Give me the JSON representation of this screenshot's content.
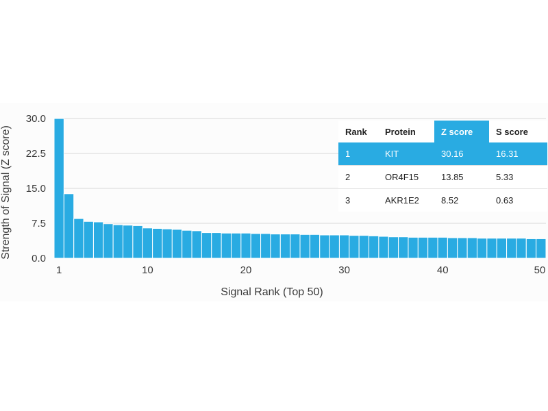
{
  "chart_data": {
    "type": "bar",
    "xlabel": "Signal Rank (Top 50)",
    "ylabel": "Strength of Signal (Z score)",
    "ylim": [
      0,
      30
    ],
    "xlim": [
      1,
      50
    ],
    "y_ticks": [
      "0.0",
      "7.5",
      "15.0",
      "22.5",
      "30.0"
    ],
    "x_ticks": [
      "1",
      "10",
      "20",
      "30",
      "40",
      "50"
    ],
    "grid": true,
    "x": [
      1,
      2,
      3,
      4,
      5,
      6,
      7,
      8,
      9,
      10,
      11,
      12,
      13,
      14,
      15,
      16,
      17,
      18,
      19,
      20,
      21,
      22,
      23,
      24,
      25,
      26,
      27,
      28,
      29,
      30,
      31,
      32,
      33,
      34,
      35,
      36,
      37,
      38,
      39,
      40,
      41,
      42,
      43,
      44,
      45,
      46,
      47,
      48,
      49,
      50
    ],
    "values": [
      30.16,
      13.85,
      8.52,
      7.9,
      7.8,
      7.4,
      7.2,
      7.1,
      7.0,
      6.5,
      6.4,
      6.3,
      6.2,
      6.0,
      5.9,
      5.5,
      5.5,
      5.4,
      5.4,
      5.4,
      5.3,
      5.3,
      5.2,
      5.2,
      5.2,
      5.1,
      5.1,
      5.0,
      5.0,
      5.0,
      4.9,
      4.9,
      4.8,
      4.7,
      4.6,
      4.6,
      4.5,
      4.5,
      4.5,
      4.5,
      4.4,
      4.4,
      4.4,
      4.3,
      4.3,
      4.3,
      4.3,
      4.3,
      4.2,
      4.2
    ],
    "color": "#29abe2",
    "table": {
      "headers": [
        "Rank",
        "Protein",
        "Z score",
        "S score"
      ],
      "highlight_color": "#29abe2",
      "rows": [
        [
          "1",
          "KIT",
          "30.16",
          "16.31"
        ],
        [
          "2",
          "OR4F15",
          "13.85",
          "5.33"
        ],
        [
          "3",
          "AKR1E2",
          "8.52",
          "0.63"
        ]
      ]
    }
  }
}
